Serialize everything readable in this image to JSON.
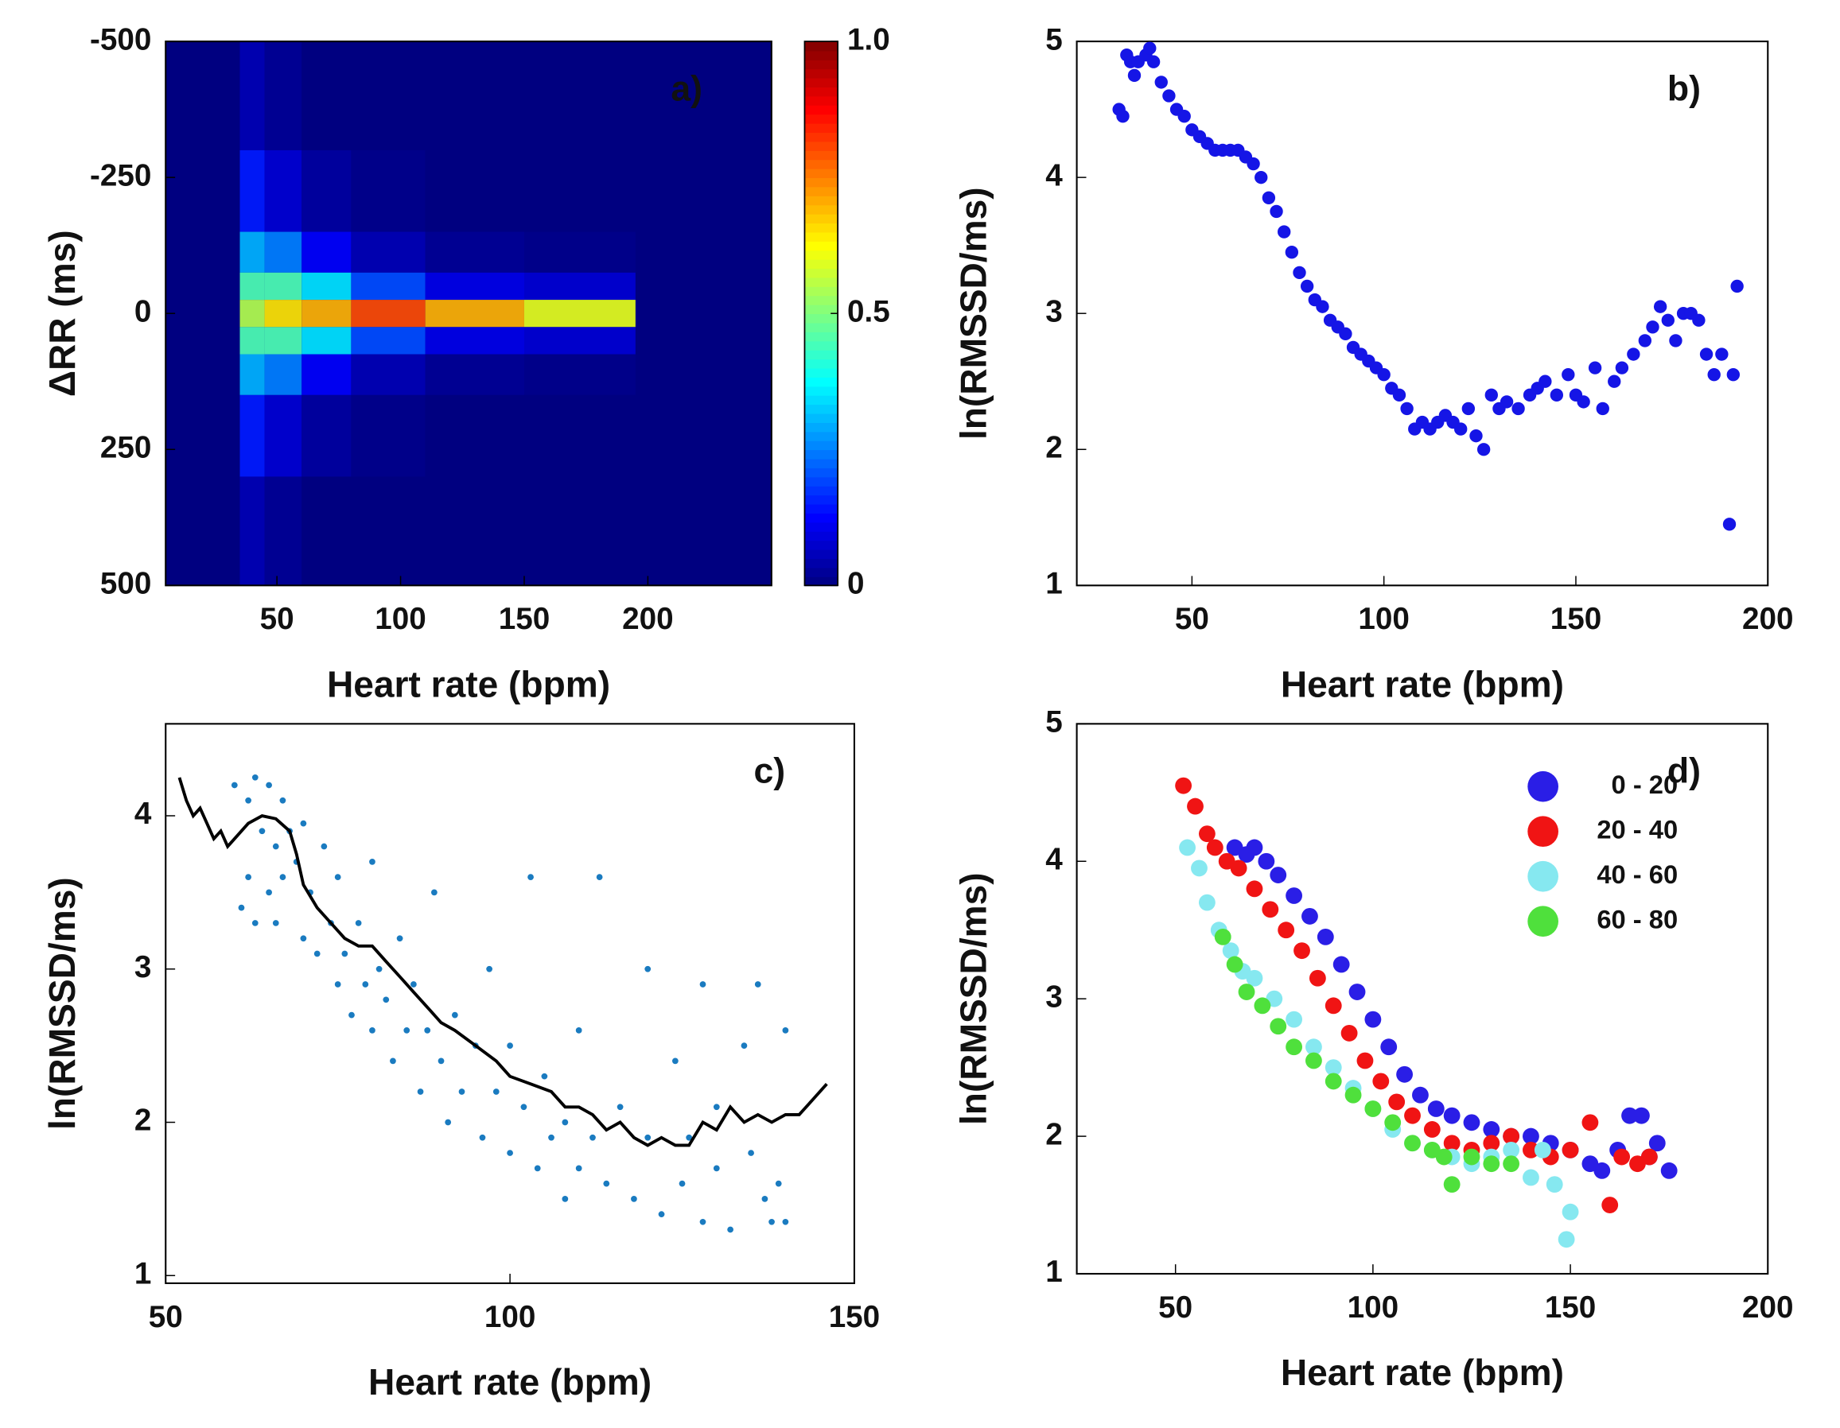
{
  "chart_data": [
    {
      "type": "heatmap",
      "annotation": "a)",
      "xlabel": "Heart rate (bpm)",
      "ylabel": "ΔRR (ms)",
      "xlim": [
        5,
        250
      ],
      "ylim": [
        500,
        -500
      ],
      "xticks": [
        50,
        100,
        150,
        200
      ],
      "yticks": [
        -500,
        -250,
        0,
        250,
        500
      ],
      "xbins": [
        35,
        45,
        60,
        80,
        110,
        150,
        195
      ],
      "ybins": [
        -500,
        -300,
        -150,
        -75,
        -25,
        25,
        75,
        150,
        300,
        500
      ],
      "z": [
        [
          0.05,
          0.15,
          0.3,
          0.45,
          0.55,
          0.45,
          0.3,
          0.15,
          0.05
        ],
        [
          0.02,
          0.08,
          0.25,
          0.45,
          0.65,
          0.45,
          0.25,
          0.08,
          0.02
        ],
        [
          0,
          0.03,
          0.12,
          0.35,
          0.7,
          0.35,
          0.12,
          0.03,
          0
        ],
        [
          0,
          0.01,
          0.05,
          0.2,
          0.8,
          0.2,
          0.05,
          0.01,
          0
        ],
        [
          0,
          0,
          0.02,
          0.1,
          0.7,
          0.1,
          0.02,
          0,
          0
        ],
        [
          0,
          0,
          0.01,
          0.08,
          0.6,
          0.08,
          0.01,
          0,
          0
        ]
      ],
      "colorbar": {
        "lim": [
          0,
          1
        ],
        "ticks": [
          0,
          0.5,
          {
            "value": 1,
            "label": "1.0"
          }
        ],
        "colormap": "jet"
      }
    },
    {
      "type": "scatter",
      "annotation": "b)",
      "xlabel": "Heart rate (bpm)",
      "ylabel": "ln(RMSSD/ms)",
      "xlim": [
        20,
        200
      ],
      "ylim": [
        1,
        5
      ],
      "xticks": [
        50,
        100,
        150,
        200
      ],
      "yticks": [
        1,
        2,
        3,
        4,
        5
      ],
      "color": "#1515e6",
      "x": [
        31,
        32,
        33,
        34,
        35,
        36,
        38,
        39,
        40,
        42,
        44,
        46,
        48,
        50,
        52,
        54,
        56,
        58,
        60,
        62,
        64,
        66,
        68,
        70,
        72,
        74,
        76,
        78,
        80,
        82,
        84,
        86,
        88,
        90,
        92,
        94,
        96,
        98,
        100,
        102,
        104,
        106,
        108,
        110,
        112,
        114,
        116,
        118,
        120,
        122,
        124,
        126,
        128,
        130,
        132,
        135,
        138,
        140,
        142,
        145,
        148,
        150,
        152,
        155,
        157,
        160,
        162,
        165,
        168,
        170,
        172,
        174,
        176,
        178,
        180,
        182,
        184,
        186,
        188,
        190,
        191,
        192
      ],
      "values": [
        4.5,
        4.45,
        4.9,
        4.85,
        4.75,
        4.85,
        4.9,
        4.95,
        4.85,
        4.7,
        4.6,
        4.5,
        4.45,
        4.35,
        4.3,
        4.25,
        4.2,
        4.2,
        4.2,
        4.2,
        4.15,
        4.1,
        4.0,
        3.85,
        3.75,
        3.6,
        3.45,
        3.3,
        3.2,
        3.1,
        3.05,
        2.95,
        2.9,
        2.85,
        2.75,
        2.7,
        2.65,
        2.6,
        2.55,
        2.45,
        2.4,
        2.3,
        2.15,
        2.2,
        2.15,
        2.2,
        2.25,
        2.2,
        2.15,
        2.3,
        2.1,
        2.0,
        2.4,
        2.3,
        2.35,
        2.3,
        2.4,
        2.45,
        2.5,
        2.4,
        2.55,
        2.4,
        2.35,
        2.6,
        2.3,
        2.5,
        2.6,
        2.7,
        2.8,
        2.9,
        3.05,
        2.95,
        2.8,
        3.0,
        3.0,
        2.95,
        2.7,
        2.55,
        2.7,
        1.45,
        2.55,
        3.2
      ]
    },
    {
      "type": "scatter",
      "annotation": "c)",
      "xlabel": "Heart rate (bpm)",
      "ylabel": "ln(RMSSD/ms)",
      "xlim": [
        50,
        150
      ],
      "ylim": [
        0.95,
        4.6
      ],
      "xticks": [
        50,
        100,
        150
      ],
      "yticks": [
        1,
        2,
        3,
        4
      ],
      "color": "#1a7bc0",
      "x": [
        60,
        61,
        62,
        62,
        63,
        63,
        64,
        65,
        65,
        66,
        66,
        67,
        67,
        68,
        69,
        70,
        70,
        71,
        72,
        73,
        74,
        75,
        75,
        76,
        77,
        78,
        79,
        80,
        80,
        81,
        82,
        83,
        84,
        85,
        86,
        87,
        88,
        89,
        90,
        91,
        92,
        93,
        95,
        96,
        97,
        98,
        100,
        100,
        102,
        103,
        104,
        105,
        106,
        108,
        108,
        110,
        110,
        112,
        113,
        114,
        116,
        118,
        120,
        120,
        122,
        124,
        125,
        126,
        128,
        128,
        130,
        130,
        132,
        134,
        135,
        136,
        137,
        138,
        139,
        140,
        140
      ],
      "values": [
        4.2,
        3.4,
        4.1,
        3.6,
        4.25,
        3.3,
        3.9,
        4.2,
        3.5,
        3.8,
        3.3,
        4.1,
        3.6,
        3.9,
        3.7,
        3.95,
        3.2,
        3.5,
        3.1,
        3.8,
        3.3,
        2.9,
        3.6,
        3.1,
        2.7,
        3.3,
        2.9,
        3.7,
        2.6,
        3.0,
        2.8,
        2.4,
        3.2,
        2.6,
        2.9,
        2.2,
        2.6,
        3.5,
        2.4,
        2.0,
        2.7,
        2.2,
        2.5,
        1.9,
        3.0,
        2.2,
        2.5,
        1.8,
        2.1,
        3.6,
        1.7,
        2.3,
        1.9,
        2.0,
        1.5,
        2.6,
        1.7,
        1.9,
        3.6,
        1.6,
        2.1,
        1.5,
        3.0,
        1.9,
        1.4,
        2.4,
        1.6,
        1.9,
        2.9,
        1.35,
        2.1,
        1.7,
        1.3,
        2.5,
        1.8,
        2.9,
        1.5,
        1.35,
        1.6,
        2.6,
        1.35
      ],
      "line": {
        "color": "#000000",
        "x": [
          52,
          53,
          54,
          55,
          56,
          57,
          58,
          59,
          60,
          62,
          64,
          66,
          68,
          69,
          70,
          72,
          74,
          76,
          78,
          80,
          82,
          84,
          86,
          88,
          90,
          92,
          95,
          98,
          100,
          103,
          106,
          108,
          110,
          112,
          114,
          116,
          118,
          120,
          122,
          124,
          126,
          128,
          130,
          132,
          134,
          136,
          138,
          140,
          142,
          144,
          146
        ],
        "values": [
          4.25,
          4.1,
          4.0,
          4.05,
          3.95,
          3.85,
          3.9,
          3.8,
          3.85,
          3.95,
          4.0,
          3.98,
          3.9,
          3.75,
          3.55,
          3.4,
          3.3,
          3.2,
          3.15,
          3.15,
          3.05,
          2.95,
          2.85,
          2.75,
          2.65,
          2.6,
          2.5,
          2.4,
          2.3,
          2.25,
          2.2,
          2.1,
          2.1,
          2.05,
          1.95,
          2.0,
          1.9,
          1.85,
          1.9,
          1.85,
          1.85,
          2.0,
          1.95,
          2.1,
          2.0,
          2.05,
          2.0,
          2.05,
          2.05,
          2.15,
          2.25
        ]
      }
    },
    {
      "type": "multi-scatter",
      "annotation": "d)",
      "xlabel": "Heart rate (bpm)",
      "ylabel": "ln(RMSSD/ms)",
      "xlim": [
        25,
        200
      ],
      "ylim": [
        1,
        5
      ],
      "xticks": [
        50,
        100,
        150,
        200
      ],
      "yticks": [
        1,
        2,
        3,
        4,
        5
      ],
      "series": [
        {
          "name": "0 - 20",
          "color": "#2a1ee6",
          "x": [
            65,
            68,
            70,
            73,
            76,
            80,
            84,
            88,
            92,
            96,
            100,
            104,
            108,
            112,
            116,
            120,
            125,
            130,
            135,
            140,
            145,
            150,
            155,
            158,
            162,
            165,
            168,
            170,
            172,
            175
          ],
          "values": [
            4.1,
            4.05,
            4.1,
            4.0,
            3.9,
            3.75,
            3.6,
            3.45,
            3.25,
            3.05,
            2.85,
            2.65,
            2.45,
            2.3,
            2.2,
            2.15,
            2.1,
            2.05,
            2.0,
            2.0,
            1.95,
            1.9,
            1.8,
            1.75,
            1.9,
            2.15,
            2.15,
            1.85,
            1.95,
            1.75
          ]
        },
        {
          "name": "20 - 40",
          "color": "#f01414",
          "x": [
            52,
            55,
            58,
            60,
            63,
            66,
            70,
            74,
            78,
            82,
            86,
            90,
            94,
            98,
            102,
            106,
            110,
            115,
            120,
            125,
            130,
            135,
            140,
            145,
            150,
            155,
            160,
            163,
            167,
            170
          ],
          "values": [
            4.55,
            4.4,
            4.2,
            4.1,
            4.0,
            3.95,
            3.8,
            3.65,
            3.5,
            3.35,
            3.15,
            2.95,
            2.75,
            2.55,
            2.4,
            2.25,
            2.15,
            2.05,
            1.95,
            1.9,
            1.95,
            2.0,
            1.9,
            1.85,
            1.9,
            2.1,
            1.5,
            1.85,
            1.8,
            1.85
          ]
        },
        {
          "name": "40 - 60",
          "color": "#86e8f0",
          "x": [
            53,
            56,
            58,
            61,
            64,
            67,
            70,
            75,
            80,
            85,
            90,
            95,
            100,
            105,
            110,
            115,
            120,
            125,
            130,
            135,
            140,
            143,
            146,
            149,
            150
          ],
          "values": [
            4.1,
            3.95,
            3.7,
            3.5,
            3.35,
            3.2,
            3.15,
            3.0,
            2.85,
            2.65,
            2.5,
            2.35,
            2.2,
            2.05,
            1.95,
            1.9,
            1.85,
            1.8,
            1.85,
            1.9,
            1.7,
            1.9,
            1.65,
            1.25,
            1.45
          ]
        },
        {
          "name": "60 - 80",
          "color": "#4fe03c",
          "x": [
            62,
            65,
            68,
            72,
            76,
            80,
            85,
            90,
            95,
            100,
            105,
            110,
            115,
            118,
            120,
            125,
            130,
            135
          ],
          "values": [
            3.45,
            3.25,
            3.05,
            2.95,
            2.8,
            2.65,
            2.55,
            2.4,
            2.3,
            2.2,
            2.1,
            1.95,
            1.9,
            1.85,
            1.65,
            1.85,
            1.8,
            1.8
          ]
        }
      ]
    }
  ]
}
